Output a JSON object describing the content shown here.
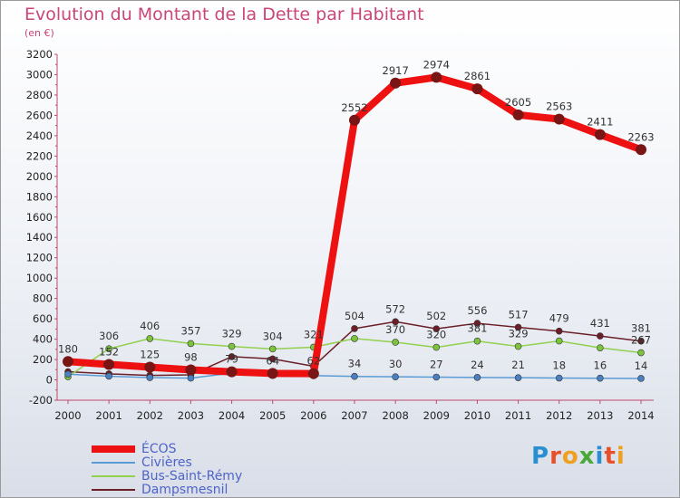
{
  "title": "Evolution du Montant de la Dette par Habitant",
  "unit": "(en €)",
  "brand": "Proxiti",
  "colors": {
    "title": "#c9457a",
    "legend_text": "#4f64c8"
  },
  "chart_data": {
    "type": "line",
    "title": "Evolution du Montant de la Dette par Habitant",
    "subtitle": "(en €)",
    "x": [
      "2000",
      "2001",
      "2002",
      "2003",
      "2004",
      "2005",
      "2006",
      "2007",
      "2008",
      "2009",
      "2010",
      "2011",
      "2012",
      "2013",
      "2014"
    ],
    "ylim": [
      -200,
      3200
    ],
    "yticks": [
      -200,
      0,
      200,
      400,
      600,
      800,
      1000,
      1200,
      1400,
      1600,
      1800,
      2000,
      2200,
      2400,
      2600,
      2800,
      3000,
      3200
    ],
    "grid": false,
    "legend_position": "bottom-left",
    "series": [
      {
        "name": "ÉCOS",
        "color": "#ee1111",
        "marker": "#7a1515",
        "values": [
          180,
          152,
          125,
          98,
          79,
          64,
          62,
          2552,
          2917,
          2974,
          2861,
          2605,
          2563,
          2411,
          2263
        ],
        "labels": [
          "180",
          "152",
          "125",
          "98",
          "79",
          "64",
          "62",
          "2552",
          "2917",
          "2974",
          "2861",
          "2605",
          "2563",
          "2411",
          "2263"
        ]
      },
      {
        "name": "Civières",
        "color": "#5b9bd5",
        "marker": "#4a7fc0",
        "values": [
          56,
          36,
          22,
          17,
          67,
          44,
          41,
          34,
          30,
          27,
          24,
          21,
          18,
          16,
          14
        ],
        "labels": [
          "",
          "",
          "",
          "",
          "",
          "",
          "",
          "34",
          "30",
          "27",
          "24",
          "21",
          "18",
          "16",
          "14"
        ]
      },
      {
        "name": "Bus-Saint-Rémy",
        "color": "#92d050",
        "marker": "#7cc43c",
        "values": [
          31,
          306,
          406,
          357,
          329,
          304,
          321,
          406,
          370,
          320,
          381,
          329,
          382,
          315,
          267
        ],
        "labels": [
          "",
          "306",
          "406",
          "357",
          "329",
          "304",
          "321",
          "",
          "370",
          "320",
          "381",
          "329",
          "",
          "",
          "267"
        ]
      },
      {
        "name": "Dampsmesnil",
        "color": "#6b1f28",
        "marker": "#6b1f28",
        "values": [
          80,
          59,
          44,
          49,
          228,
          206,
          134,
          504,
          572,
          502,
          556,
          517,
          479,
          431,
          381
        ],
        "labels": [
          "",
          "",
          "",
          "",
          "",
          "",
          "",
          "504",
          "572",
          "502",
          "556",
          "517",
          "479",
          "431",
          "381"
        ]
      }
    ]
  }
}
